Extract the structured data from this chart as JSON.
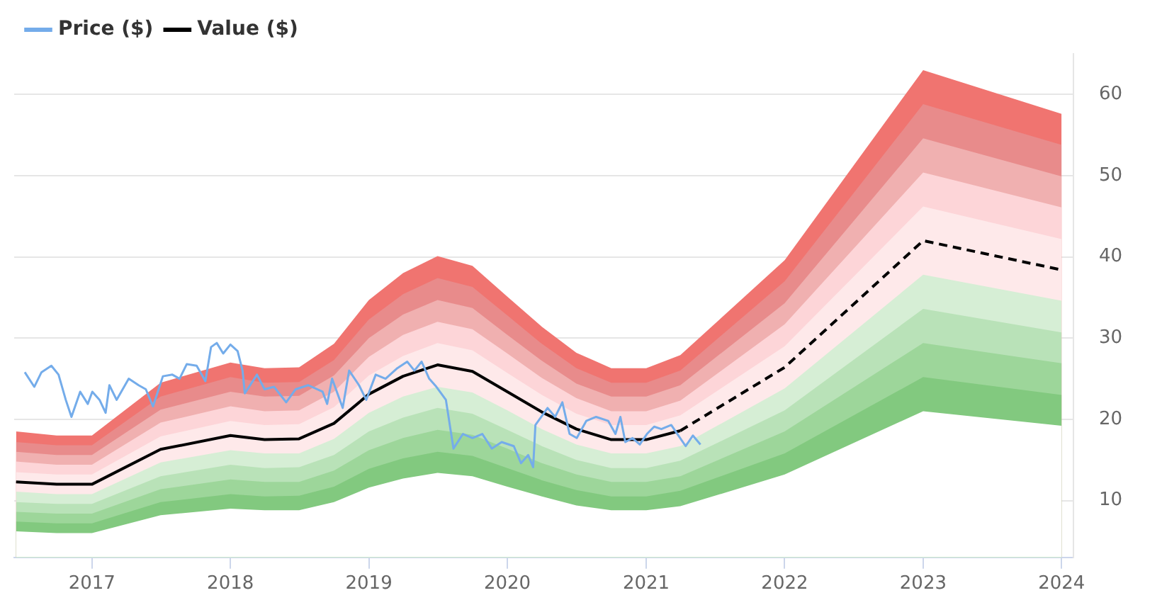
{
  "chart_data": {
    "type": "line",
    "legend": "top left",
    "grid": "y",
    "marker": "none",
    "xlim": [
      "2016-06-10",
      "2024-02-01"
    ],
    "xticks": [
      "2017",
      "2018",
      "2019",
      "2020",
      "2021",
      "2022",
      "2023",
      "2024"
    ],
    "ylim": [
      3,
      65
    ],
    "yticks": [
      10,
      20,
      30,
      40,
      50,
      60
    ],
    "x": [
      "2016-06-15",
      "2016-09-30",
      "2017-01-01",
      "2017-07-01",
      "2018-01-01",
      "2018-04-01",
      "2018-07-01",
      "2018-10-01",
      "2019-01-01",
      "2019-04-01",
      "2019-07-01",
      "2019-10-01",
      "2020-01-01",
      "2020-04-01",
      "2020-07-01",
      "2020-10-01",
      "2021-01-01",
      "2021-04-01",
      "2022-01-01",
      "2023-01-01",
      "2024-01-01"
    ],
    "series": [
      {
        "type": "line",
        "name": "Price ($)",
        "color": "#74acea",
        "line_style": "solid",
        "x": [
          "2016-07-08",
          "2016-08-02",
          "2016-08-21",
          "2016-09-16",
          "2016-10-05",
          "2016-10-24",
          "2016-11-08",
          "2016-12-01",
          "2016-12-21",
          "2017-01-02",
          "2017-01-21",
          "2017-02-06",
          "2017-02-16",
          "2017-03-07",
          "2017-04-08",
          "2017-05-04",
          "2017-05-23",
          "2017-06-11",
          "2017-07-07",
          "2017-08-01",
          "2017-08-20",
          "2017-09-08",
          "2017-10-04",
          "2017-10-27",
          "2017-11-11",
          "2017-11-26",
          "2017-12-13",
          "2018-01-01",
          "2018-01-20",
          "2018-02-02",
          "2018-02-08",
          "2018-03-12",
          "2018-04-01",
          "2018-04-26",
          "2018-05-28",
          "2018-06-22",
          "2018-07-25",
          "2018-09-01",
          "2018-09-13",
          "2018-09-26",
          "2018-10-24",
          "2018-11-10",
          "2018-12-06",
          "2018-12-25",
          "2019-01-19",
          "2019-02-14",
          "2019-03-17",
          "2019-04-12",
          "2019-05-01",
          "2019-05-20",
          "2019-06-09",
          "2019-06-28",
          "2019-07-23",
          "2019-08-12",
          "2019-09-06",
          "2019-10-01",
          "2019-10-27",
          "2019-11-21",
          "2019-12-17",
          "2020-01-18",
          "2020-02-06",
          "2020-02-25",
          "2020-03-09",
          "2020-03-15",
          "2020-04-16",
          "2020-05-06",
          "2020-05-25",
          "2020-06-13",
          "2020-07-02",
          "2020-07-27",
          "2020-08-22",
          "2020-09-23",
          "2020-10-12",
          "2020-10-25",
          "2020-11-07",
          "2020-11-26",
          "2020-12-15",
          "2021-01-03",
          "2021-01-22",
          "2021-02-10",
          "2021-03-08",
          "2021-03-27",
          "2021-04-15",
          "2021-05-04",
          "2021-05-24"
        ],
        "values": [
          25.8,
          24.0,
          25.8,
          26.6,
          25.5,
          22.4,
          20.3,
          23.4,
          21.9,
          23.4,
          22.4,
          20.8,
          24.2,
          22.4,
          25.0,
          24.2,
          23.7,
          21.6,
          25.3,
          25.5,
          25.0,
          26.8,
          26.6,
          24.7,
          28.9,
          29.4,
          28.1,
          29.2,
          28.4,
          26.0,
          23.2,
          25.5,
          23.7,
          24.0,
          22.1,
          23.7,
          24.2,
          23.4,
          21.9,
          25.0,
          21.4,
          26.0,
          24.2,
          22.4,
          25.5,
          25.0,
          26.3,
          27.1,
          26.0,
          27.1,
          25.0,
          24.0,
          22.4,
          16.4,
          18.2,
          17.7,
          18.2,
          16.4,
          17.2,
          16.7,
          14.6,
          15.6,
          14.1,
          19.3,
          21.4,
          20.3,
          22.1,
          18.2,
          17.7,
          19.8,
          20.3,
          19.8,
          18.2,
          20.3,
          17.2,
          17.7,
          16.9,
          18.2,
          19.1,
          18.8,
          19.3,
          18.0,
          16.7,
          18.0,
          16.9
        ]
      },
      {
        "type": "line",
        "name": "Value ($)",
        "color": "#000000",
        "line_style": "solid",
        "x": [
          "2016-06-15",
          "2016-09-30",
          "2017-01-01",
          "2017-07-01",
          "2018-01-01",
          "2018-04-01",
          "2018-07-01",
          "2018-10-01",
          "2019-01-01",
          "2019-04-01",
          "2019-07-01",
          "2019-10-01",
          "2020-01-01",
          "2020-04-01",
          "2020-07-01",
          "2020-10-01",
          "2021-01-01",
          "2021-04-01"
        ],
        "values": [
          12.3,
          12.0,
          12.0,
          16.3,
          18.0,
          17.5,
          17.6,
          19.5,
          23.1,
          25.3,
          26.7,
          25.9,
          23.4,
          20.9,
          18.8,
          17.5,
          17.5,
          18.6
        ]
      },
      {
        "type": "line",
        "color": "#000000",
        "line_style": "dashed",
        "x": [
          "2021-04-01",
          "2022-01-01",
          "2023-01-01",
          "2024-01-01"
        ],
        "values": [
          18.6,
          26.4,
          42.0,
          38.4
        ]
      },
      {
        "type": "area",
        "color": "#f07470",
        "values": [
          18.5,
          18.0,
          18.0,
          24.5,
          27.0,
          26.3,
          26.4,
          29.3,
          34.7,
          38.0,
          40.1,
          38.9,
          35.1,
          31.4,
          28.2,
          26.3,
          26.3,
          27.9,
          39.6,
          63.0,
          57.6
        ]
      },
      {
        "type": "area",
        "color": "#e88b8b",
        "values": [
          17.2,
          16.8,
          16.8,
          22.8,
          25.2,
          24.5,
          24.6,
          27.3,
          32.3,
          35.4,
          37.4,
          36.3,
          32.8,
          29.3,
          26.3,
          24.5,
          24.5,
          26.0,
          37.0,
          58.8,
          53.8
        ]
      },
      {
        "type": "area",
        "color": "#f0b0b0",
        "values": [
          16.0,
          15.6,
          15.6,
          21.2,
          23.4,
          22.8,
          22.9,
          25.4,
          30.0,
          32.9,
          34.7,
          33.7,
          30.4,
          27.2,
          24.4,
          22.8,
          22.8,
          24.2,
          34.3,
          54.6,
          49.9
        ]
      },
      {
        "type": "area",
        "color": "#fdd5d8",
        "values": [
          14.8,
          14.4,
          14.4,
          19.6,
          21.6,
          21.0,
          21.1,
          23.4,
          27.7,
          30.4,
          32.0,
          31.1,
          28.1,
          25.1,
          22.6,
          21.0,
          21.0,
          22.3,
          31.7,
          50.4,
          46.1
        ]
      },
      {
        "type": "area",
        "color": "#fee9ea",
        "values": [
          13.5,
          13.2,
          13.2,
          17.9,
          19.8,
          19.3,
          19.4,
          21.5,
          25.4,
          27.8,
          29.4,
          28.5,
          25.7,
          23.0,
          20.7,
          19.3,
          19.3,
          20.5,
          29.0,
          46.2,
          42.2
        ]
      },
      {
        "type": "area",
        "color": "#d6eed5",
        "values": [
          11.1,
          10.8,
          10.8,
          14.7,
          16.2,
          15.8,
          15.8,
          17.6,
          20.8,
          22.8,
          24.0,
          23.3,
          21.1,
          18.8,
          16.9,
          15.8,
          15.8,
          16.7,
          23.8,
          37.8,
          34.6
        ]
      },
      {
        "type": "area",
        "color": "#b9e2b8",
        "values": [
          9.8,
          9.6,
          9.6,
          13.0,
          14.4,
          14.0,
          14.1,
          15.6,
          18.5,
          20.2,
          21.4,
          20.7,
          18.7,
          16.7,
          15.0,
          14.0,
          14.0,
          14.9,
          21.1,
          33.6,
          30.7
        ]
      },
      {
        "type": "area",
        "color": "#9dd69a",
        "values": [
          8.6,
          8.4,
          8.4,
          11.4,
          12.6,
          12.3,
          12.3,
          13.7,
          16.2,
          17.7,
          18.7,
          18.1,
          16.4,
          14.6,
          13.2,
          12.3,
          12.3,
          13.0,
          18.5,
          29.4,
          26.9
        ]
      },
      {
        "type": "area",
        "color": "#82c97f",
        "values": [
          7.4,
          7.2,
          7.2,
          9.8,
          10.8,
          10.5,
          10.6,
          11.7,
          13.9,
          15.2,
          16.0,
          15.5,
          14.0,
          12.5,
          11.3,
          10.5,
          10.5,
          11.2,
          15.8,
          25.2,
          23.0
        ]
      },
      {
        "type": "area",
        "color": "#ffffff",
        "values": [
          6.2,
          6.0,
          6.0,
          8.2,
          9.0,
          8.8,
          8.8,
          9.8,
          11.6,
          12.7,
          13.4,
          13.0,
          11.7,
          10.5,
          9.4,
          8.8,
          8.8,
          9.3,
          13.2,
          21.0,
          19.2
        ]
      }
    ]
  }
}
